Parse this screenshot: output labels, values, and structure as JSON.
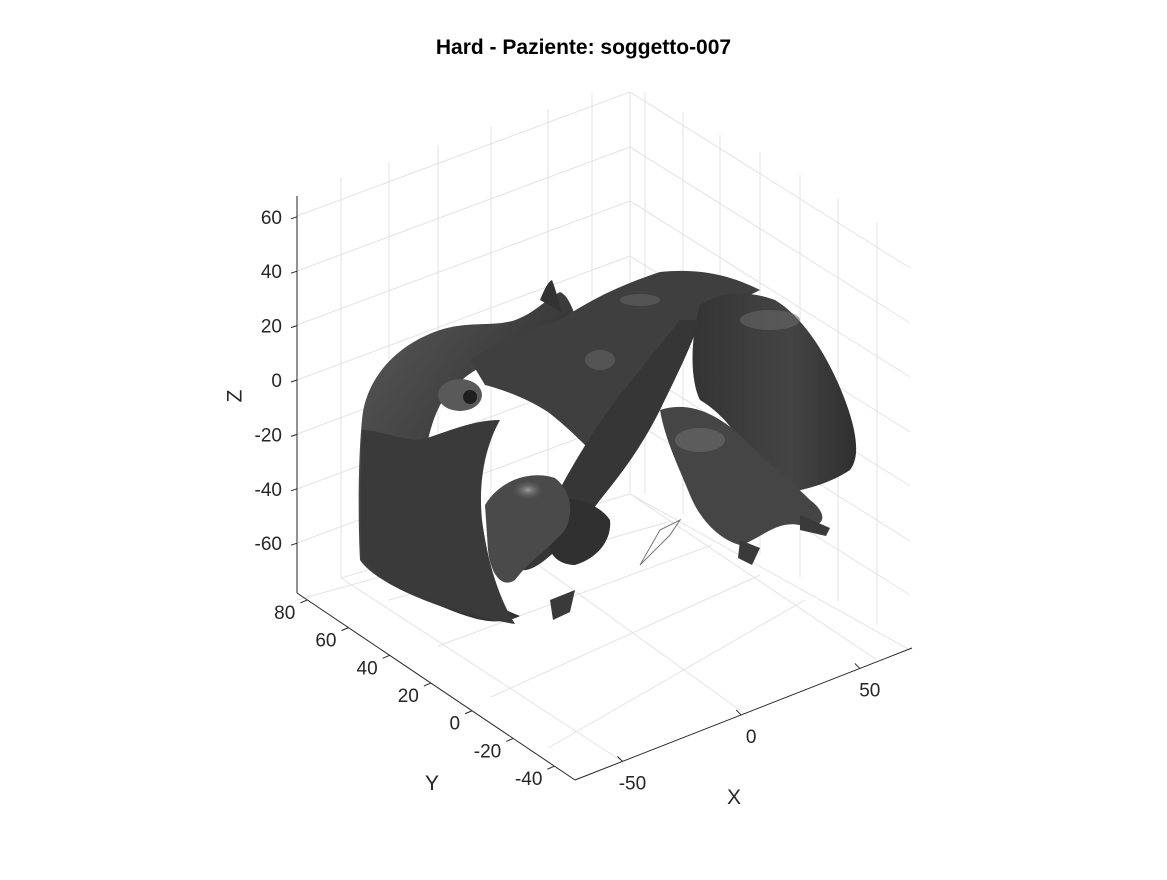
{
  "chart_data": {
    "type": "surface-3d",
    "title": "Hard - Paziente: soggetto-007",
    "xlabel": "X",
    "ylabel": "Y",
    "zlabel": "Z",
    "x_ticks": [
      -50,
      0,
      50
    ],
    "y_ticks": [
      -40,
      -20,
      0,
      20,
      40,
      60,
      80
    ],
    "z_ticks": [
      -60,
      -40,
      -20,
      0,
      20,
      40,
      60
    ],
    "x_tick_labels": [
      "-50",
      "0",
      "50"
    ],
    "y_tick_labels": [
      "-40",
      "-20",
      "0",
      "20",
      "40",
      "60",
      "80"
    ],
    "z_tick_labels": [
      "-60",
      "-40",
      "-20",
      "0",
      "20",
      "40",
      "60"
    ],
    "grid": true,
    "surface_color": "#3c3c3c"
  }
}
